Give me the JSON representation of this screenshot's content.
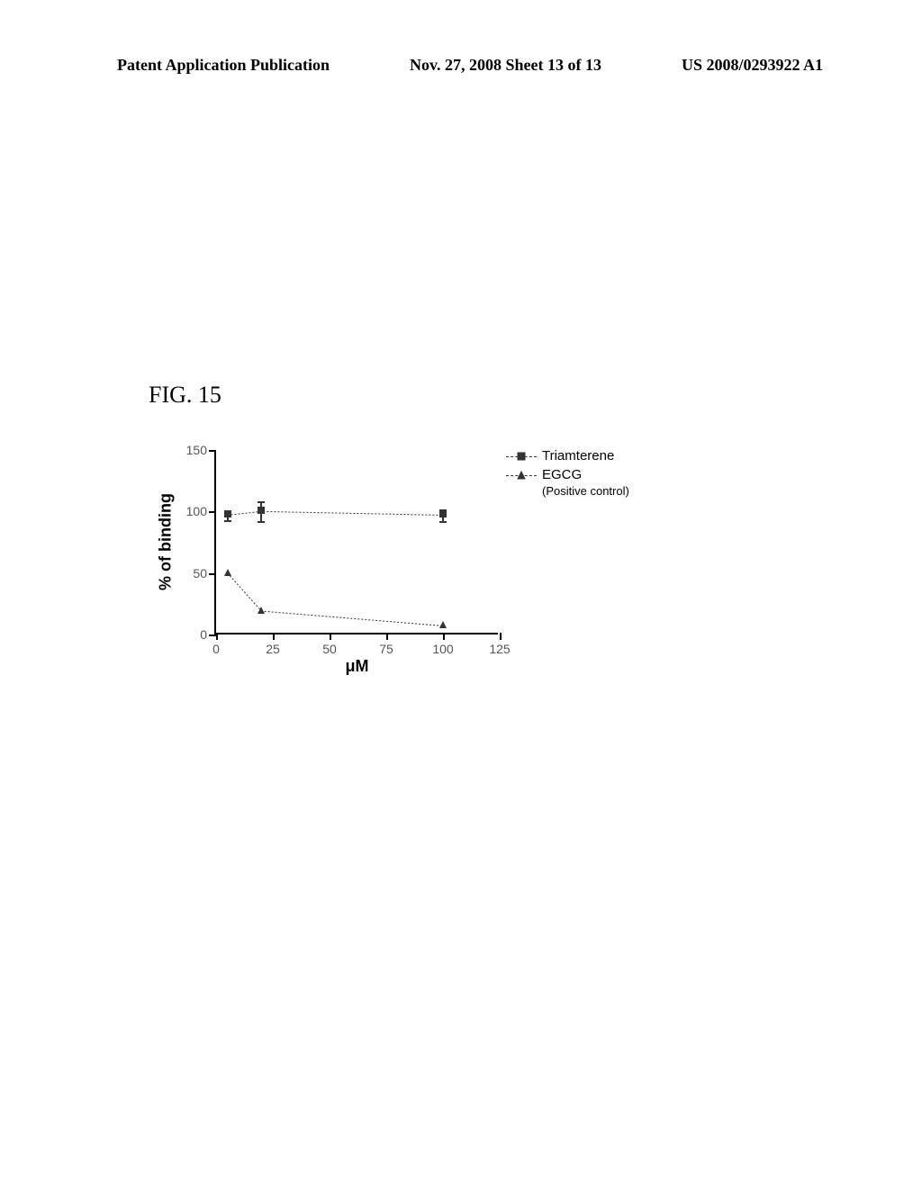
{
  "header": {
    "left": "Patent Application Publication",
    "center": "Nov. 27, 2008  Sheet 13 of 13",
    "right": "US 2008/0293922 A1"
  },
  "figure_label": "FIG. 15",
  "chart": {
    "type": "line",
    "ylabel": "% of binding",
    "xlabel": "μM",
    "xlim": [
      0,
      125
    ],
    "ylim": [
      0,
      150
    ],
    "xtick_step": 25,
    "ytick_step": 50,
    "xticks": [
      0,
      25,
      50,
      75,
      100,
      125
    ],
    "yticks": [
      0,
      50,
      100,
      150
    ],
    "series": [
      {
        "name": "Triamterene",
        "marker": "square",
        "color": "#333333",
        "x": [
          5,
          20,
          100
        ],
        "y": [
          97,
          100,
          97
        ],
        "err": [
          4,
          8,
          5
        ]
      },
      {
        "name": "EGCG",
        "sub": "(Positive control)",
        "marker": "triangle",
        "color": "#333333",
        "x": [
          5,
          20,
          100
        ],
        "y": [
          50,
          19,
          7
        ],
        "err": [
          0,
          0,
          0
        ]
      }
    ],
    "line_dash": "2 2",
    "background_color": "#ffffff",
    "axis_color": "#000000"
  },
  "legend": {
    "items": [
      {
        "label": "Triamterene",
        "marker": "square"
      },
      {
        "label": "EGCG",
        "marker": "triangle",
        "sub": "(Positive control)"
      }
    ]
  }
}
